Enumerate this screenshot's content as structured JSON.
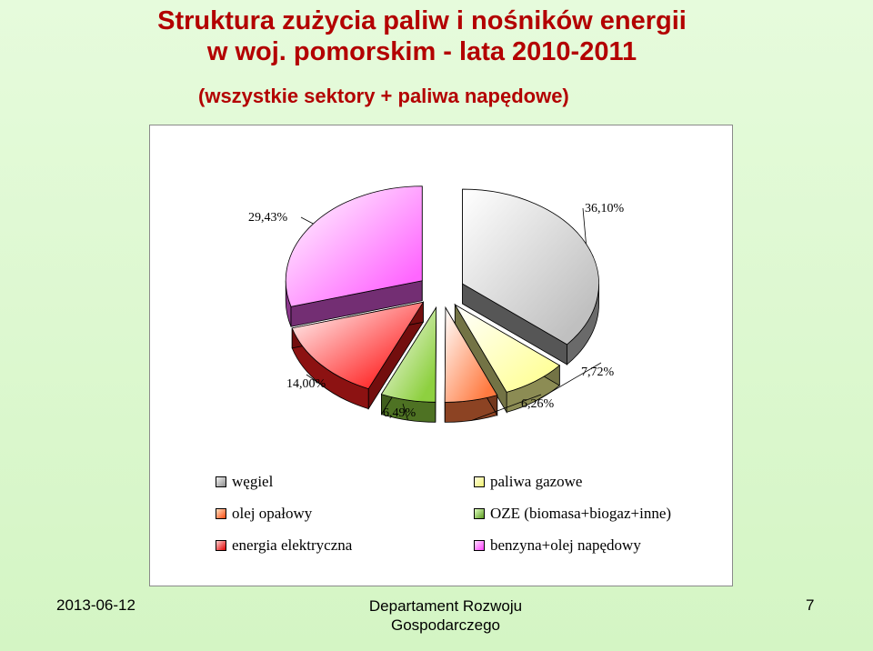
{
  "slide": {
    "title_line1": "Struktura zużycia paliw i nośników energii",
    "title_line2": "w woj. pomorskim - lata 2010-2011",
    "subtitle": "(wszystkie sektory + paliwa napędowe)",
    "footer_date": "2013-06-12",
    "footer_dept_line1": "Departament Rozwoju",
    "footer_dept_line2": "Gospodarczego",
    "page_number": "7"
  },
  "chart_data": {
    "type": "pie",
    "title": "",
    "labels": [
      "węgiel",
      "paliwa gazowe",
      "olej opałowy",
      "OZE (biomasa+biogaz+inne)",
      "energia elektryczna",
      "benzyna+olej napędowy"
    ],
    "values": [
      36.1,
      7.72,
      6.26,
      6.49,
      14.0,
      29.43
    ],
    "value_labels": [
      "36,10%",
      "7,72%",
      "6,26%",
      "6,49%",
      "14,00%",
      "29,43%"
    ],
    "colors": [
      "#c0c0c0",
      "#ffff99",
      "#ff7a40",
      "#8ed040",
      "#ff2020",
      "#ff66ff"
    ],
    "exploded": true,
    "style": "3d",
    "legend": {
      "placement": "bottom",
      "left_column": [
        "węgiel",
        "olej opałowy",
        "energia elektryczna"
      ],
      "right_column": [
        "paliwa gazowe",
        "OZE (biomasa+biogaz+inne)",
        "benzyna+olej napędowy"
      ]
    }
  }
}
